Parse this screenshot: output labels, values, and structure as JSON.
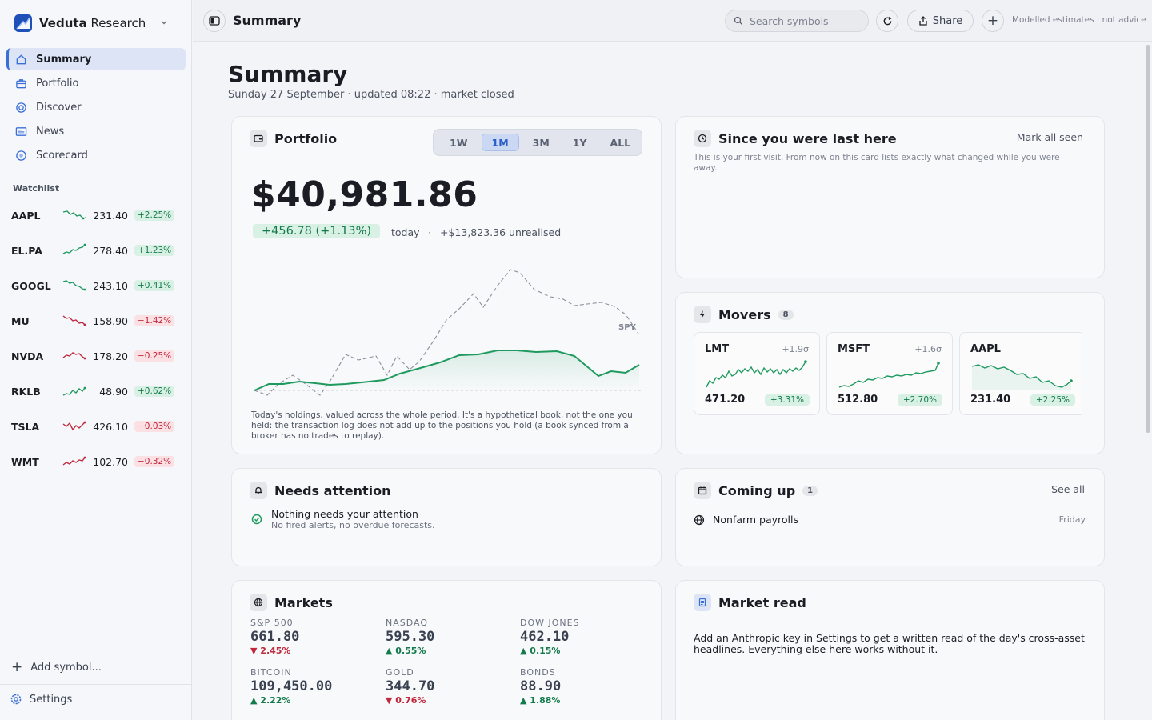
{
  "brand": {
    "name_bold": "Veduta",
    "name_rest": " Research"
  },
  "nav": [
    {
      "label": "Summary",
      "icon": "home-icon",
      "active": true
    },
    {
      "label": "Portfolio",
      "icon": "briefcase-icon"
    },
    {
      "label": "Discover",
      "icon": "target-icon"
    },
    {
      "label": "News",
      "icon": "newspaper-icon"
    },
    {
      "label": "Scorecard",
      "icon": "scorecard-icon"
    }
  ],
  "watchlist": {
    "title": "Watchlist",
    "items": [
      {
        "symbol": "AAPL",
        "price": "231.40",
        "change": "+2.25%",
        "dir": "up"
      },
      {
        "symbol": "EL.PA",
        "price": "278.40",
        "change": "+1.23%",
        "dir": "up"
      },
      {
        "symbol": "GOOGL",
        "price": "243.10",
        "change": "+0.41%",
        "dir": "up"
      },
      {
        "symbol": "MU",
        "price": "158.90",
        "change": "−1.42%",
        "dir": "down"
      },
      {
        "symbol": "NVDA",
        "price": "178.20",
        "change": "−0.25%",
        "dir": "down"
      },
      {
        "symbol": "RKLB",
        "price": "48.90",
        "change": "+0.62%",
        "dir": "up"
      },
      {
        "symbol": "TSLA",
        "price": "426.10",
        "change": "−0.03%",
        "dir": "down"
      },
      {
        "symbol": "WMT",
        "price": "102.70",
        "change": "−0.32%",
        "dir": "down"
      }
    ],
    "add_label": "Add symbol..."
  },
  "settings_label": "Settings",
  "topbar": {
    "title": "Summary",
    "search_placeholder": "Search symbols",
    "share_label": "Share",
    "note": "Modelled estimates · not advice"
  },
  "page": {
    "title": "Summary",
    "subtitle": "Sunday 27 September · updated 08:22 · market closed"
  },
  "portfolio": {
    "title": "Portfolio",
    "ranges": [
      "1W",
      "1M",
      "3M",
      "1Y",
      "ALL"
    ],
    "active_range": "1M",
    "value": "$40,981.86",
    "change": "+456.78 (+1.13%)",
    "today": "today",
    "dot": "·",
    "unrealised": "+$13,823.36 unrealised",
    "benchmark_label": "SPY",
    "note": "Today's holdings, valued across the whole period. It's a hypothetical book, not the one you held: the transaction log does not add up to the positions you hold (a book synced from a broker has no trades to replay).",
    "colors": {
      "portfolio": "#1f9a5f",
      "benchmark": "#8a8f99"
    }
  },
  "since": {
    "title": "Since you were last here",
    "action": "Mark all seen",
    "body": "This is your first visit. From now on this card lists exactly what changed while you were away."
  },
  "movers": {
    "title": "Movers",
    "count": "8",
    "items": [
      {
        "symbol": "LMT",
        "sigma": "+1.9σ",
        "price": "471.20",
        "change": "+3.31%",
        "dir": "up"
      },
      {
        "symbol": "MSFT",
        "sigma": "+1.6σ",
        "price": "512.80",
        "change": "+2.70%",
        "dir": "up"
      },
      {
        "symbol": "AAPL",
        "sigma": "",
        "price": "231.40",
        "change": "+2.25%",
        "dir": "up"
      }
    ]
  },
  "needs_attention": {
    "title": "Needs attention",
    "main": "Nothing needs your attention",
    "sub": "No fired alerts, no overdue forecasts."
  },
  "coming_up": {
    "title": "Coming up",
    "count": "1",
    "action": "See all",
    "items": [
      {
        "label": "Nonfarm payrolls",
        "when": "Friday"
      }
    ]
  },
  "markets": {
    "title": "Markets",
    "items": [
      {
        "name": "S&P 500",
        "value": "661.80",
        "change": "▼ 2.45%",
        "dir": "down"
      },
      {
        "name": "NASDAQ",
        "value": "595.30",
        "change": "▲ 0.55%",
        "dir": "up"
      },
      {
        "name": "DOW JONES",
        "value": "462.10",
        "change": "▲ 0.15%",
        "dir": "up"
      },
      {
        "name": "BITCOIN",
        "value": "109,450.00",
        "change": "▲ 2.22%",
        "dir": "up"
      },
      {
        "name": "GOLD",
        "value": "344.70",
        "change": "▼ 0.76%",
        "dir": "down"
      },
      {
        "name": "BONDS",
        "value": "88.90",
        "change": "▲ 1.88%",
        "dir": "up"
      }
    ]
  },
  "market_read": {
    "title": "Market read",
    "body": "Add an Anthropic key in Settings to get a written read of the day's cross-asset headlines. Everything else here works without it."
  }
}
